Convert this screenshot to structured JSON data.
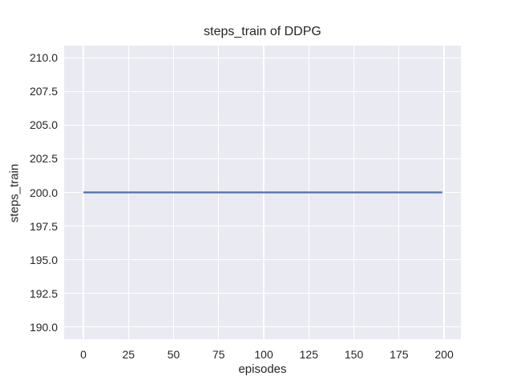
{
  "chart_data": {
    "type": "line",
    "title": "steps_train of DDPG",
    "xlabel": "episodes",
    "ylabel": "steps_train",
    "xlim": [
      -10.7,
      209.3
    ],
    "ylim": [
      189.1,
      210.9
    ],
    "xticks": [
      0,
      25,
      50,
      75,
      100,
      125,
      150,
      175,
      200
    ],
    "xtick_labels": [
      "0",
      "25",
      "50",
      "75",
      "100",
      "125",
      "150",
      "175",
      "200"
    ],
    "yticks": [
      190.0,
      192.5,
      195.0,
      197.5,
      200.0,
      202.5,
      205.0,
      207.5,
      210.0
    ],
    "ytick_labels": [
      "190.0",
      "192.5",
      "195.0",
      "197.5",
      "200.0",
      "202.5",
      "205.0",
      "207.5",
      "210.0"
    ],
    "grid": true,
    "legend": false,
    "style": {
      "axes_background": "#eaeaf2",
      "grid_color": "#ffffff",
      "text_color": "#262626"
    },
    "series": [
      {
        "name": "steps_train",
        "color": "#4c72b0",
        "line_width": 2.2,
        "x": [
          0,
          199
        ],
        "y": [
          200,
          200
        ]
      }
    ]
  }
}
